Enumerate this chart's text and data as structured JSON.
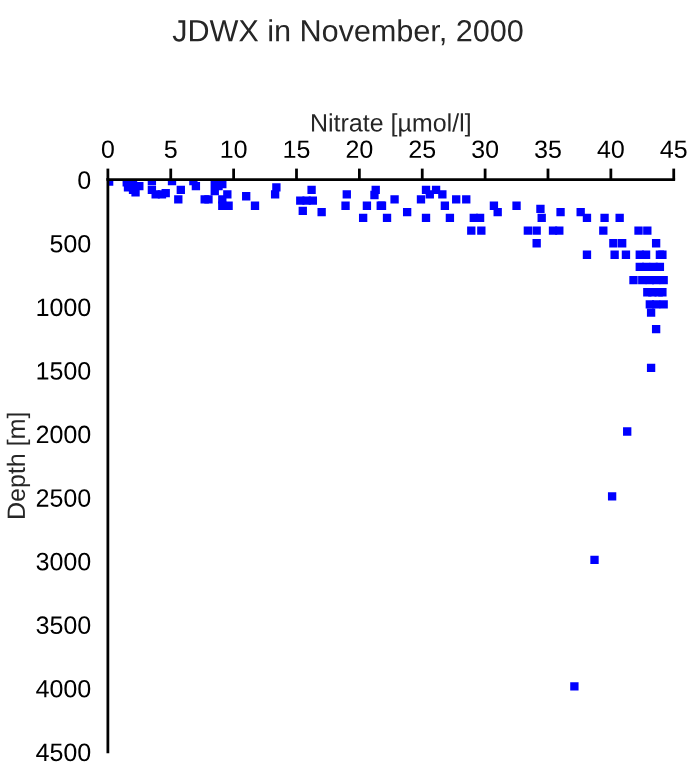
{
  "chart_data": {
    "type": "scatter",
    "title": "JDWX in November, 2000",
    "xlabel": "Nitrate [µmol/l]",
    "ylabel": "Depth [m]",
    "xlim": [
      0,
      45
    ],
    "xticks": [
      0,
      5,
      10,
      15,
      20,
      25,
      30,
      35,
      40,
      45
    ],
    "ylim": [
      4500,
      0
    ],
    "yticks": [
      0,
      500,
      1000,
      1500,
      2000,
      2500,
      3000,
      3500,
      4000,
      4500
    ],
    "marker": "square",
    "grid": false,
    "series": [
      {
        "color": "#0000ff",
        "x": [
          0.1,
          1.5,
          2.0,
          2.2,
          1.6,
          2.5,
          2.0,
          3.5,
          3.5,
          3.8,
          4.3,
          4.6,
          5.1,
          5.8,
          5.6,
          6.8,
          7.0,
          7.7,
          8.0,
          8.5,
          8.8,
          9.1,
          8.5,
          9.1,
          9.1,
          9.5,
          9.6,
          11.0,
          11.7,
          13.4,
          13.3,
          15.3,
          15.8,
          16.3,
          15.5,
          16.2,
          17.0,
          19.0,
          18.9,
          20.3,
          20.6,
          21.2,
          21.3,
          21.8,
          22.2,
          21.7,
          22.8,
          23.8,
          24.9,
          25.3,
          25.6,
          26.1,
          26.6,
          25.3,
          26.8,
          27.2,
          27.7,
          28.5,
          29.1,
          29.6,
          28.9,
          29.7,
          30.7,
          31.0,
          32.5,
          33.4,
          34.1,
          34.4,
          34.5,
          34.1,
          35.4,
          35.9,
          36.0,
          37.6,
          38.1,
          38.1,
          39.4,
          39.5,
          40.2,
          40.3,
          40.7,
          40.9,
          41.2,
          42.2,
          42.9,
          43.6,
          41.8,
          42.3,
          42.8,
          43.9,
          44.1,
          42.3,
          42.8,
          43.4,
          43.9,
          42.5,
          43.1,
          43.6,
          44.2,
          42.9,
          43.3,
          43.8,
          44.1,
          43.1,
          43.6,
          44.2,
          43.2,
          43.6,
          43.2,
          41.3,
          40.1,
          38.7,
          37.1
        ],
        "values": [
          15,
          20,
          80,
          100,
          60,
          50,
          30,
          10,
          80,
          115,
          115,
          105,
          10,
          80,
          155,
          10,
          50,
          155,
          155,
          25,
          50,
          35,
          90,
          155,
          205,
          115,
          205,
          130,
          205,
          60,
          115,
          165,
          165,
          165,
          245,
          80,
          255,
          115,
          205,
          300,
          205,
          120,
          80,
          205,
          300,
          205,
          155,
          255,
          155,
          80,
          115,
          80,
          115,
          300,
          205,
          300,
          155,
          155,
          300,
          300,
          400,
          400,
          205,
          255,
          205,
          400,
          400,
          230,
          300,
          500,
          400,
          400,
          255,
          255,
          300,
          590,
          400,
          300,
          500,
          590,
          300,
          500,
          590,
          400,
          400,
          500,
          790,
          590,
          590,
          590,
          590,
          685,
          685,
          685,
          685,
          790,
          790,
          790,
          790,
          885,
          885,
          885,
          885,
          980,
          980,
          980,
          1045,
          1175,
          1480,
          1980,
          2490,
          2990,
          3985
        ]
      }
    ]
  }
}
